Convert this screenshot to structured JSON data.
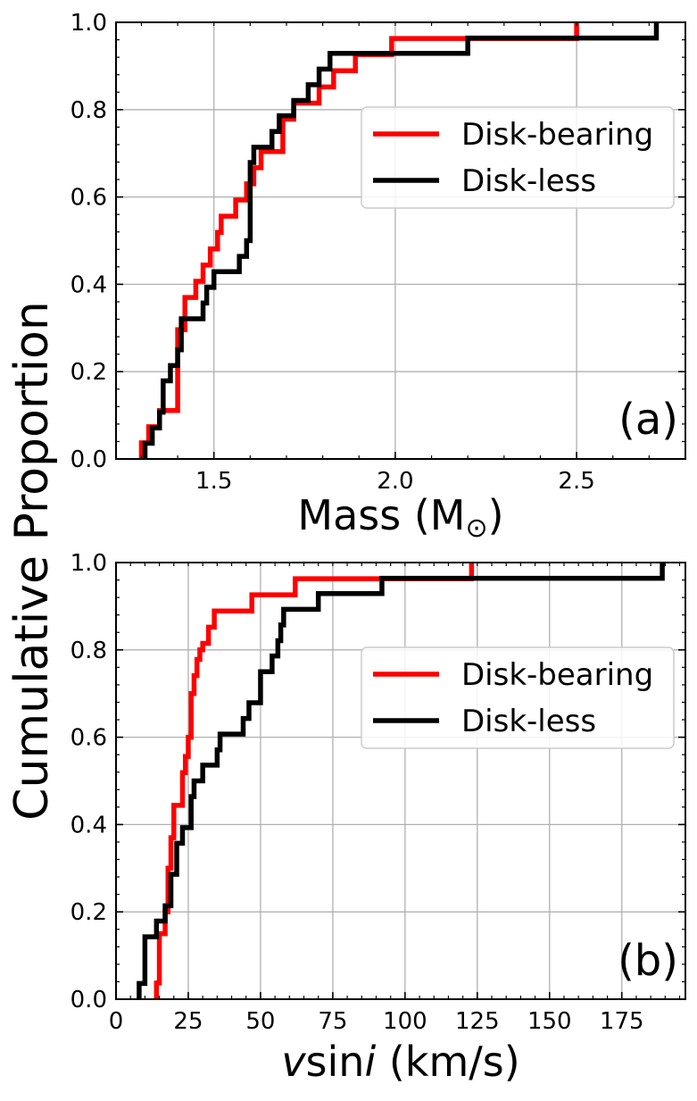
{
  "figure": {
    "shared_ylabel": "Cumulative Proportion"
  },
  "colors": {
    "disk_bearing": "#ff0000",
    "disk_less": "#000000",
    "grid": "#b0b0b0",
    "legend_border": "#cccccc"
  },
  "chart_data": [
    {
      "type": "line",
      "step": true,
      "panel_tag": "(a)",
      "xlabel_main": "Mass (M",
      "xlabel_symbol": "⊙",
      "xlabel_close": ")",
      "ylabel": "Cumulative Proportion",
      "xlim": [
        1.23,
        2.8
      ],
      "ylim": [
        0,
        1
      ],
      "xticks": [
        1.5,
        2.0,
        2.5
      ],
      "xtick_labels": [
        "1.5",
        "2.0",
        "2.5"
      ],
      "yticks": [
        0,
        0.2,
        0.4,
        0.6,
        0.8,
        1.0
      ],
      "ytick_labels": [
        "0.0",
        "0.2",
        "0.4",
        "0.6",
        "0.8",
        "1.0"
      ],
      "grid": true,
      "legend": {
        "position": "center-right",
        "entries": [
          "Disk-bearing",
          "Disk-less"
        ]
      },
      "series": [
        {
          "name": "Disk-bearing",
          "color": "#ff0000",
          "x": [
            1.3,
            1.32,
            1.35,
            1.4,
            1.42,
            1.45,
            1.47,
            1.49,
            1.51,
            1.52,
            1.56,
            1.59,
            1.61,
            1.63,
            1.69,
            1.72,
            1.79,
            1.83,
            1.89,
            1.99,
            2.19,
            2.5
          ],
          "y": [
            0.037,
            0.074,
            0.111,
            0.296,
            0.37,
            0.407,
            0.444,
            0.481,
            0.519,
            0.556,
            0.593,
            0.63,
            0.667,
            0.704,
            0.778,
            0.815,
            0.852,
            0.889,
            0.926,
            0.963,
            0.963,
            1.0
          ]
        },
        {
          "name": "Disk-less",
          "color": "#000000",
          "x": [
            1.31,
            1.33,
            1.35,
            1.36,
            1.38,
            1.4,
            1.41,
            1.47,
            1.48,
            1.5,
            1.57,
            1.59,
            1.6,
            1.61,
            1.66,
            1.68,
            1.72,
            1.76,
            1.79,
            1.82,
            1.85,
            2.2,
            2.72
          ],
          "y": [
            0.036,
            0.071,
            0.107,
            0.179,
            0.214,
            0.25,
            0.321,
            0.357,
            0.393,
            0.429,
            0.464,
            0.5,
            0.679,
            0.714,
            0.75,
            0.786,
            0.821,
            0.857,
            0.893,
            0.929,
            0.929,
            0.964,
            1.0
          ]
        }
      ]
    },
    {
      "type": "line",
      "step": true,
      "panel_tag": "(b)",
      "xlabel_v": "v",
      "xlabel_sin": "sin",
      "xlabel_i": "i",
      "xlabel_units": " (km/s)",
      "ylabel": "Cumulative Proportion",
      "xlim": [
        0,
        197
      ],
      "ylim": [
        0,
        1
      ],
      "xticks": [
        0,
        25,
        50,
        75,
        100,
        125,
        150,
        175
      ],
      "xtick_labels": [
        "0",
        "25",
        "50",
        "75",
        "100",
        "125",
        "150",
        "175"
      ],
      "yticks": [
        0,
        0.2,
        0.4,
        0.6,
        0.8,
        1.0
      ],
      "ytick_labels": [
        "0.0",
        "0.2",
        "0.4",
        "0.6",
        "0.8",
        "1.0"
      ],
      "grid": true,
      "legend": {
        "position": "center-right",
        "entries": [
          "Disk-bearing",
          "Disk-less"
        ]
      },
      "series": [
        {
          "name": "Disk-bearing",
          "color": "#ff0000",
          "x": [
            14,
            15,
            17,
            18,
            19,
            20,
            23,
            24,
            25,
            26,
            27,
            28,
            29,
            30,
            32,
            34,
            36,
            47,
            62,
            123
          ],
          "y": [
            0.037,
            0.15,
            0.2,
            0.3,
            0.37,
            0.444,
            0.519,
            0.556,
            0.6,
            0.7,
            0.741,
            0.778,
            0.8,
            0.815,
            0.852,
            0.889,
            0.889,
            0.926,
            0.963,
            1.0
          ]
        },
        {
          "name": "Disk-less",
          "color": "#000000",
          "x": [
            8,
            10,
            14,
            17,
            19,
            21,
            23,
            26,
            27,
            30,
            35,
            36,
            44,
            46,
            50,
            54,
            56,
            57,
            58,
            60,
            70,
            92,
            189
          ],
          "y": [
            0.036,
            0.143,
            0.179,
            0.214,
            0.286,
            0.357,
            0.393,
            0.464,
            0.5,
            0.536,
            0.571,
            0.607,
            0.643,
            0.679,
            0.75,
            0.786,
            0.821,
            0.857,
            0.893,
            0.893,
            0.929,
            0.964,
            1.0
          ]
        }
      ]
    }
  ]
}
